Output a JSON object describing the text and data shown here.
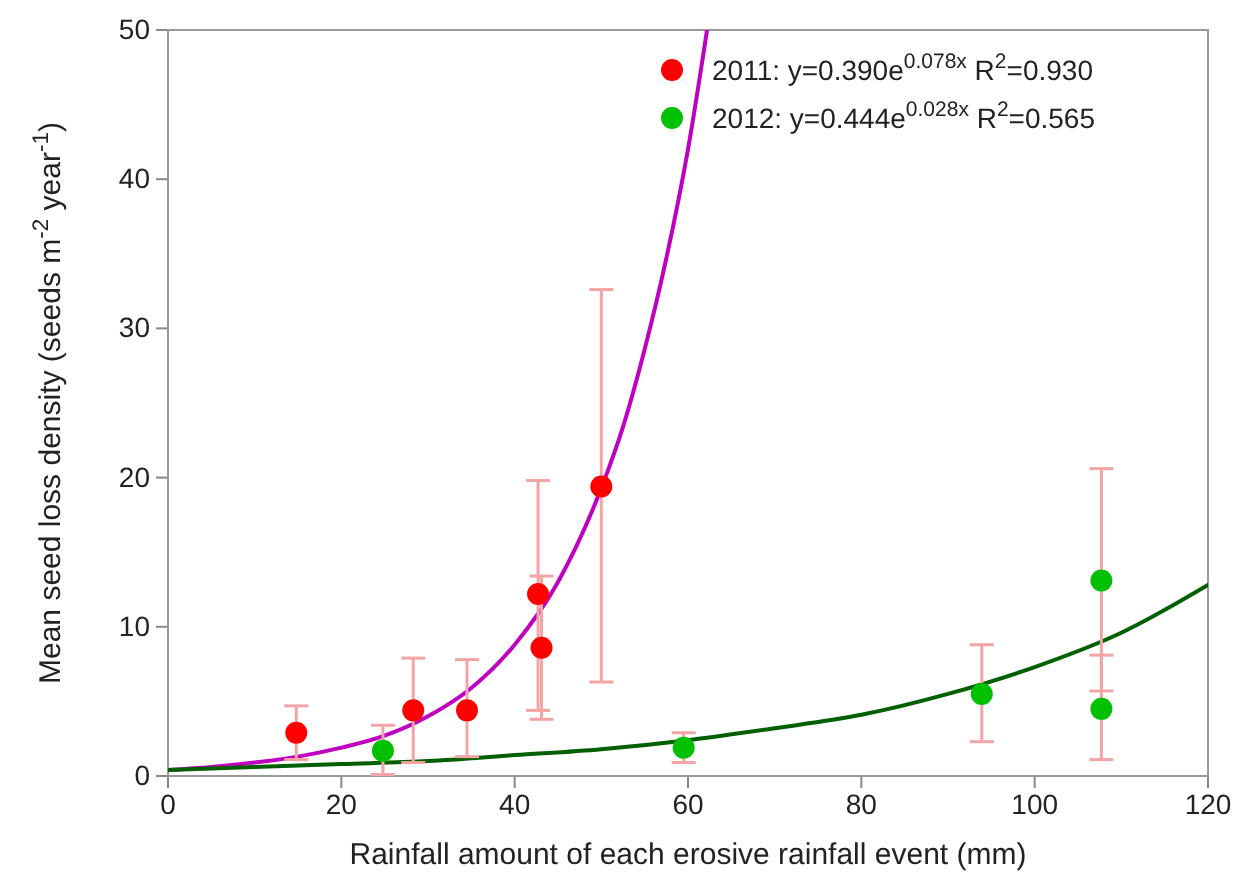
{
  "chart_data": {
    "type": "scatter",
    "xlabel": "Rainfall amount of each erosive rainfall event (mm)",
    "ylabel": "Mean seed loss density (seeds m$^{-2}$ year$^{-1}$)",
    "xlim": [
      0,
      120
    ],
    "xticks": [
      0,
      20,
      40,
      60,
      80,
      100,
      120
    ],
    "ylim": [
      0,
      50
    ],
    "yticks": [
      0,
      10,
      20,
      30,
      40,
      50
    ],
    "legend": "top right",
    "grid": false,
    "series": [
      {
        "name": "2011: y=0.390e$^{0.078x}$ R$^{2}$=0.930",
        "color": "#ff0000",
        "marker": "circle",
        "x": [
          14.8,
          28.3,
          34.5,
          42.7,
          43.1,
          50.0
        ],
        "values": [
          2.9,
          4.4,
          4.4,
          12.2,
          8.6,
          19.4
        ],
        "errors": [
          [
            1.1,
            4.7
          ],
          [
            0.9,
            7.9
          ],
          [
            1.3,
            7.8
          ],
          [
            4.4,
            19.8
          ],
          [
            3.8,
            13.4
          ],
          [
            6.3,
            32.6
          ]
        ]
      },
      {
        "name": "2012: y=0.444e$^{0.028x}$ R$^{2}$=0.565",
        "color": "#00c000",
        "marker": "circle",
        "x": [
          24.8,
          59.5,
          93.9,
          107.7,
          107.7
        ],
        "values": [
          1.7,
          1.9,
          5.5,
          13.1,
          4.5
        ],
        "errors": [
          [
            0.1,
            3.4
          ],
          [
            0.9,
            2.9
          ],
          [
            2.3,
            8.8
          ],
          [
            5.7,
            20.6
          ],
          [
            1.1,
            8.1
          ]
        ]
      },
      {
        "type": "line",
        "color": "#c000c0",
        "marker": "none",
        "x": [
          0,
          5,
          10,
          15,
          20,
          25,
          30,
          35,
          40,
          45,
          50,
          52.5,
          55,
          57.5,
          60,
          62.2
        ],
        "values": [
          0.4,
          0.6,
          0.9,
          1.3,
          1.9,
          2.7,
          4.0,
          5.9,
          8.8,
          13.0,
          19.3,
          23.4,
          28.6,
          34.7,
          42.0,
          50
        ]
      },
      {
        "type": "line",
        "color": "#006000",
        "marker": "none",
        "x": [
          0,
          10,
          20,
          30,
          40,
          50,
          60,
          70,
          80,
          90,
          100,
          110,
          120
        ],
        "values": [
          0.4,
          0.6,
          0.8,
          1.0,
          1.4,
          1.8,
          2.4,
          3.2,
          4.1,
          5.5,
          7.3,
          9.6,
          12.8
        ]
      }
    ]
  }
}
